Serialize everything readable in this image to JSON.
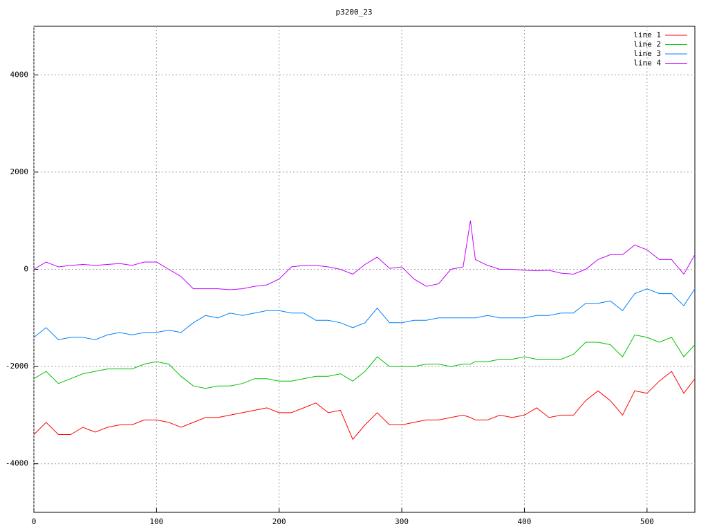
{
  "chart_data": {
    "type": "line",
    "title": "p3200_23",
    "x": [
      0,
      10,
      20,
      30,
      40,
      50,
      60,
      70,
      80,
      90,
      100,
      110,
      120,
      130,
      140,
      150,
      160,
      170,
      180,
      190,
      200,
      210,
      220,
      230,
      240,
      250,
      260,
      270,
      280,
      290,
      300,
      310,
      320,
      330,
      340,
      350,
      356,
      360,
      370,
      380,
      390,
      400,
      410,
      420,
      430,
      440,
      450,
      460,
      470,
      480,
      490,
      500,
      510,
      520,
      530,
      539
    ],
    "series": [
      {
        "name": "line 1",
        "color": "#ff0000",
        "values": [
          -3400,
          -3150,
          -3400,
          -3400,
          -3250,
          -3350,
          -3250,
          -3200,
          -3200,
          -3100,
          -3100,
          -3150,
          -3250,
          -3150,
          -3050,
          -3050,
          -3000,
          -2950,
          -2900,
          -2850,
          -2950,
          -2950,
          -2850,
          -2750,
          -2950,
          -2900,
          -3500,
          -3200,
          -2950,
          -3200,
          -3200,
          -3150,
          -3100,
          -3100,
          -3050,
          -3000,
          -3050,
          -3100,
          -3100,
          -3000,
          -3050,
          -3000,
          -2850,
          -3050,
          -3000,
          -3000,
          -2700,
          -2500,
          -2700,
          -3000,
          -2500,
          -2550,
          -2300,
          -2100,
          -2550,
          -2250
        ]
      },
      {
        "name": "line 2",
        "color": "#00c000",
        "values": [
          -2250,
          -2100,
          -2350,
          -2250,
          -2150,
          -2100,
          -2050,
          -2050,
          -2050,
          -1950,
          -1900,
          -1950,
          -2200,
          -2400,
          -2450,
          -2400,
          -2400,
          -2350,
          -2250,
          -2250,
          -2300,
          -2300,
          -2250,
          -2200,
          -2200,
          -2150,
          -2300,
          -2100,
          -1800,
          -2000,
          -2000,
          -2000,
          -1950,
          -1950,
          -2000,
          -1950,
          -1950,
          -1900,
          -1900,
          -1850,
          -1850,
          -1800,
          -1850,
          -1850,
          -1850,
          -1750,
          -1500,
          -1500,
          -1550,
          -1800,
          -1350,
          -1400,
          -1500,
          -1400,
          -1800,
          -1550
        ]
      },
      {
        "name": "line 3",
        "color": "#0080ff",
        "values": [
          -1400,
          -1200,
          -1450,
          -1400,
          -1400,
          -1450,
          -1350,
          -1300,
          -1350,
          -1300,
          -1300,
          -1250,
          -1300,
          -1100,
          -950,
          -1000,
          -900,
          -950,
          -900,
          -850,
          -850,
          -900,
          -900,
          -1050,
          -1050,
          -1100,
          -1200,
          -1100,
          -800,
          -1100,
          -1100,
          -1050,
          -1050,
          -1000,
          -1000,
          -1000,
          -1000,
          -1000,
          -950,
          -1000,
          -1000,
          -1000,
          -950,
          -950,
          -900,
          -900,
          -700,
          -700,
          -650,
          -850,
          -500,
          -400,
          -500,
          -500,
          -750,
          -400
        ]
      },
      {
        "name": "line 4",
        "color": "#c000ff",
        "values": [
          0,
          150,
          50,
          80,
          100,
          80,
          100,
          120,
          80,
          150,
          150,
          0,
          -150,
          -400,
          -400,
          -400,
          -420,
          -400,
          -350,
          -320,
          -200,
          50,
          80,
          80,
          50,
          0,
          -100,
          100,
          250,
          20,
          50,
          -200,
          -350,
          -300,
          0,
          50,
          1000,
          200,
          80,
          0,
          0,
          -20,
          -30,
          -20,
          -80,
          -100,
          0,
          200,
          300,
          300,
          500,
          400,
          200,
          200,
          -100,
          300
        ]
      }
    ],
    "xlim": [
      0,
      539
    ],
    "ylim": [
      -5000,
      5000
    ],
    "xticks": [
      0,
      100,
      200,
      300,
      400,
      500
    ],
    "yticks": [
      -4000,
      -2000,
      0,
      2000,
      4000
    ],
    "grid": true,
    "legend": "top-right"
  }
}
